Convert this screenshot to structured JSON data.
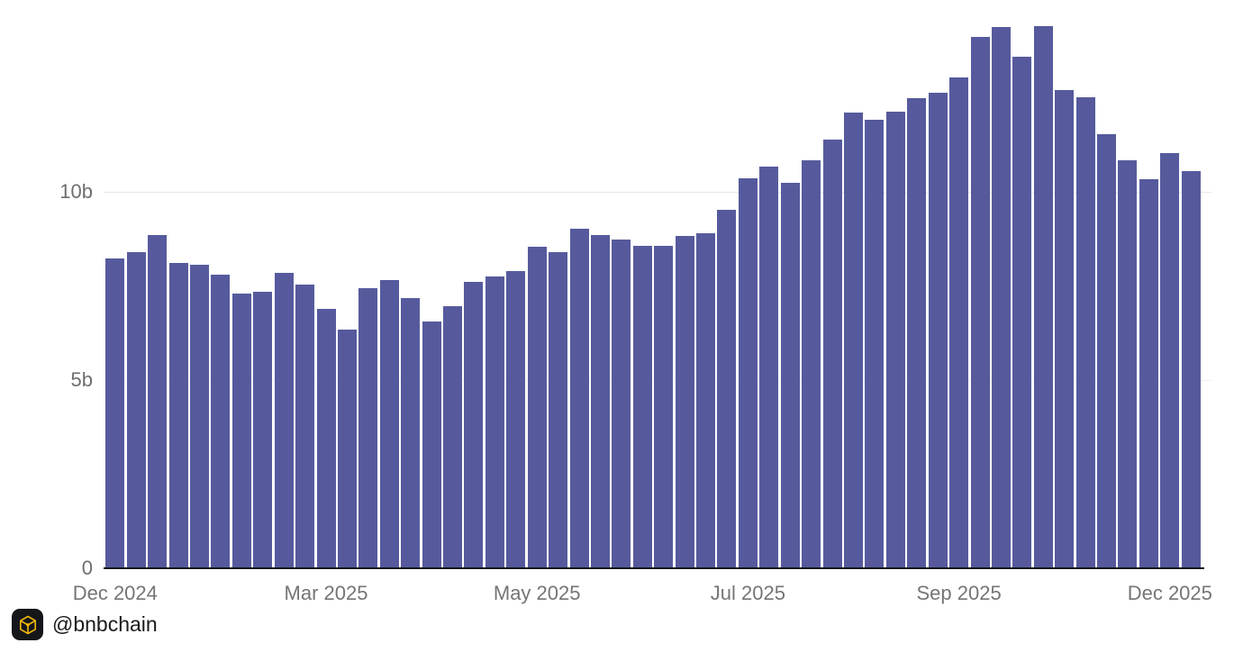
{
  "chart_data": {
    "type": "bar",
    "title": "",
    "xlabel": "",
    "ylabel": "",
    "unit": "billions",
    "n_bars": 52,
    "values": [
      8.23,
      8.39,
      8.85,
      8.11,
      8.06,
      7.8,
      7.29,
      7.35,
      7.84,
      7.52,
      6.89,
      6.34,
      7.44,
      7.64,
      7.17,
      6.56,
      6.96,
      7.61,
      7.75,
      7.9,
      8.54,
      8.38,
      9.02,
      8.85,
      8.73,
      8.57,
      8.55,
      8.82,
      8.89,
      9.51,
      10.35,
      10.66,
      10.23,
      10.82,
      11.38,
      12.1,
      11.91,
      12.11,
      12.48,
      12.63,
      13.03,
      14.11,
      14.36,
      13.58,
      14.38,
      12.7,
      12.5,
      11.53,
      10.84,
      10.33,
      11.03,
      10.54
    ],
    "ylim": [
      0,
      15
    ],
    "grid": "horizontal, drawn behind bars",
    "legend": "none",
    "bar_color": "#565a9d",
    "yticks": [
      {
        "value": 0,
        "label": "0"
      },
      {
        "value": 5,
        "label": "5b"
      },
      {
        "value": 10,
        "label": "10b"
      }
    ],
    "xticks": [
      {
        "bar_index": 0,
        "label": "Dec 2024"
      },
      {
        "bar_index": 10,
        "label": "Mar 2025"
      },
      {
        "bar_index": 20,
        "label": "May 2025"
      },
      {
        "bar_index": 30,
        "label": "Jul 2025"
      },
      {
        "bar_index": 40,
        "label": "Sep 2025"
      },
      {
        "bar_index": 50,
        "label": "Dec 2025"
      }
    ]
  },
  "watermark": {
    "handle": "@bnbchain",
    "icon": "bnb-cube-icon",
    "icon_bg": "#15161a",
    "icon_color": "#f0b90b"
  },
  "colors": {
    "background": "#ffffff",
    "bar": "#565a9d",
    "gridline": "#e6e6e6",
    "gridline_faint": "#f0f0f0",
    "axis_line": "#16161d",
    "tick_text": "#6e6e6e"
  }
}
